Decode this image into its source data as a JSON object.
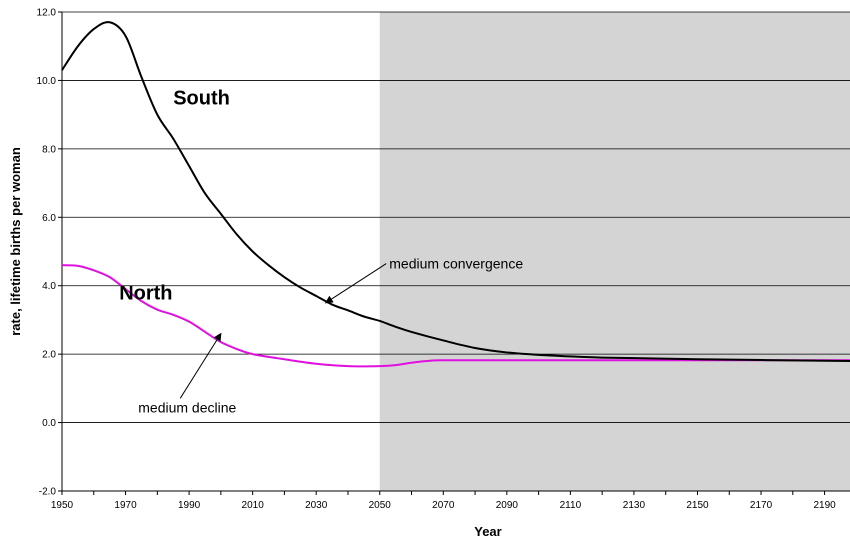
{
  "chart_data": {
    "type": "line",
    "xlabel": "Year",
    "ylabel": "rate, lifetime births per woman",
    "xlim": [
      1950,
      2198
    ],
    "ylim": [
      -2.0,
      12.0
    ],
    "x_ticks": [
      1950,
      1970,
      1990,
      2010,
      2030,
      2050,
      2070,
      2090,
      2110,
      2130,
      2150,
      2170,
      2190
    ],
    "y_ticks": [
      "12.0",
      "10.0",
      "8.0",
      "6.0",
      "4.0",
      "2.0",
      "0.0",
      "-2.0"
    ],
    "grid": "horizontal",
    "shaded_region": {
      "from": 2050,
      "to": 2198,
      "color": "#d4d4d4"
    },
    "series": [
      {
        "name": "South",
        "color": "#000000",
        "x": [
          1950,
          1955,
          1960,
          1965,
          1970,
          1975,
          1980,
          1985,
          1990,
          1995,
          2000,
          2005,
          2010,
          2015,
          2020,
          2025,
          2030,
          2035,
          2040,
          2045,
          2050,
          2055,
          2060,
          2070,
          2080,
          2090,
          2100,
          2120,
          2150,
          2198
        ],
        "y": [
          10.3,
          11.0,
          11.5,
          11.7,
          11.3,
          10.1,
          9.0,
          8.3,
          7.5,
          6.7,
          6.1,
          5.5,
          5.0,
          4.6,
          4.25,
          3.95,
          3.7,
          3.45,
          3.28,
          3.1,
          2.97,
          2.8,
          2.65,
          2.4,
          2.18,
          2.05,
          1.98,
          1.9,
          1.85,
          1.8
        ]
      },
      {
        "name": "North",
        "color": "#e010e0",
        "x": [
          1950,
          1955,
          1960,
          1965,
          1970,
          1975,
          1980,
          1985,
          1990,
          1995,
          2000,
          2005,
          2010,
          2020,
          2030,
          2040,
          2050,
          2055,
          2060,
          2065,
          2070,
          2090,
          2120,
          2150,
          2198
        ],
        "y": [
          4.6,
          4.58,
          4.45,
          4.25,
          3.9,
          3.55,
          3.3,
          3.15,
          2.95,
          2.65,
          2.35,
          2.15,
          2.0,
          1.85,
          1.72,
          1.65,
          1.65,
          1.68,
          1.75,
          1.8,
          1.82,
          1.82,
          1.82,
          1.82,
          1.82
        ]
      }
    ],
    "annotations": [
      {
        "text": "South",
        "style": "series-label",
        "x": 1985,
        "y": 9.3
      },
      {
        "text": "North",
        "style": "series-label",
        "x": 1968,
        "y": 3.6
      },
      {
        "text": "medium convergence",
        "style": "annotation",
        "x": 2053,
        "y": 4.5,
        "arrow_to": [
          2033,
          3.5
        ]
      },
      {
        "text": "medium decline",
        "style": "annotation",
        "x": 1974,
        "y": 0.3,
        "arrow_to": [
          2000,
          2.6
        ]
      }
    ]
  }
}
